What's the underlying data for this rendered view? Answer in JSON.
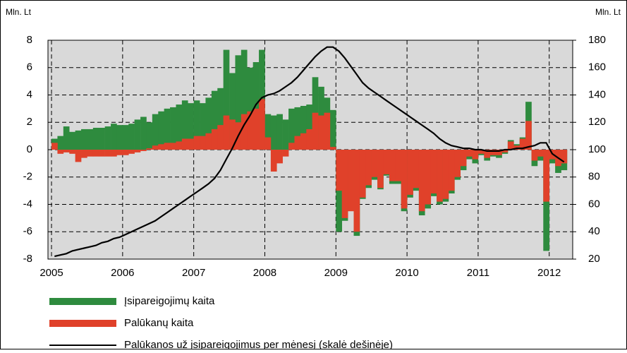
{
  "chart_data": {
    "type": "bar",
    "y_label": "Mln. Lt",
    "y2_label": "Mln. Lt",
    "x": [
      2005.042,
      2005.125,
      2005.208,
      2005.292,
      2005.375,
      2005.458,
      2005.542,
      2005.625,
      2005.708,
      2005.792,
      2005.875,
      2005.958,
      2006.042,
      2006.125,
      2006.208,
      2006.292,
      2006.375,
      2006.458,
      2006.542,
      2006.625,
      2006.708,
      2006.792,
      2006.875,
      2006.958,
      2007.042,
      2007.125,
      2007.208,
      2007.292,
      2007.375,
      2007.458,
      2007.542,
      2007.625,
      2007.708,
      2007.792,
      2007.875,
      2007.958,
      2008.042,
      2008.125,
      2008.208,
      2008.292,
      2008.375,
      2008.458,
      2008.542,
      2008.625,
      2008.708,
      2008.792,
      2008.875,
      2008.958,
      2009.042,
      2009.125,
      2009.208,
      2009.292,
      2009.375,
      2009.458,
      2009.542,
      2009.625,
      2009.708,
      2009.792,
      2009.875,
      2009.958,
      2010.042,
      2010.125,
      2010.208,
      2010.292,
      2010.375,
      2010.458,
      2010.542,
      2010.625,
      2010.708,
      2010.792,
      2010.875,
      2010.958,
      2011.042,
      2011.125,
      2011.208,
      2011.292,
      2011.375,
      2011.458,
      2011.542,
      2011.625,
      2011.708,
      2011.792,
      2011.875,
      2011.958,
      2012.042,
      2012.125,
      2012.208
    ],
    "series": [
      {
        "name": "Įsipareigojimų kaita",
        "color": "#2e8b3e",
        "type": "bar",
        "values": [
          0.8,
          1.0,
          1.7,
          1.3,
          1.4,
          1.5,
          1.5,
          1.6,
          1.6,
          1.7,
          1.9,
          1.8,
          1.8,
          1.9,
          2.2,
          2.4,
          2.0,
          2.6,
          2.8,
          3.0,
          3.1,
          3.3,
          3.6,
          3.4,
          3.6,
          3.4,
          3.8,
          4.3,
          4.5,
          7.3,
          5.6,
          6.9,
          7.3,
          6.0,
          6.4,
          7.3,
          2.6,
          2.5,
          2.6,
          2.2,
          3.0,
          3.1,
          3.2,
          3.3,
          5.3,
          4.6,
          3.8,
          2.9,
          -6.0,
          -5.2,
          -4.0,
          -6.3,
          -3.6,
          -2.8,
          -2.2,
          -2.9,
          -1.9,
          -2.5,
          -2.5,
          -4.5,
          -3.5,
          -3.0,
          -4.8,
          -4.3,
          -3.4,
          -4.0,
          -3.8,
          -3.2,
          -2.2,
          -1.5,
          -0.7,
          -1.0,
          -0.4,
          -0.8,
          -0.5,
          -0.6,
          -0.3,
          0.7,
          0.4,
          0.9,
          3.5,
          -1.2,
          -0.8,
          -7.4,
          -1.0,
          -1.7,
          -1.5
        ]
      },
      {
        "name": "Palūkanų kaita",
        "color": "#e0412a",
        "type": "bar",
        "values": [
          0.5,
          -0.3,
          -0.2,
          -0.3,
          -0.9,
          -0.6,
          -0.5,
          -0.5,
          -0.5,
          -0.5,
          -0.5,
          -0.4,
          -0.4,
          -0.3,
          -0.2,
          -0.1,
          0.1,
          0.3,
          0.4,
          0.5,
          0.5,
          0.6,
          0.8,
          0.8,
          1.0,
          1.0,
          1.2,
          1.5,
          1.8,
          2.5,
          2.2,
          2.0,
          2.6,
          2.8,
          3.0,
          3.7,
          0.9,
          -1.6,
          -1.0,
          -0.5,
          0.5,
          1.0,
          1.2,
          1.5,
          2.7,
          2.5,
          2.7,
          0.2,
          -3.0,
          -5.0,
          -4.5,
          -6.0,
          -3.5,
          -2.6,
          -2.0,
          -2.8,
          -1.8,
          -2.3,
          -2.3,
          -4.3,
          -3.3,
          -2.8,
          -4.5,
          -4.0,
          -3.2,
          -3.8,
          -3.6,
          -3.0,
          -2.0,
          -1.2,
          -0.5,
          -0.7,
          -0.3,
          -0.6,
          -0.4,
          -0.4,
          -0.2,
          0.6,
          0.3,
          0.8,
          2.1,
          -0.8,
          -0.5,
          -3.8,
          -0.7,
          -1.2,
          -1.0
        ]
      },
      {
        "name": "Palūkanos už įsipareigojimus per mėnesį (skalė dešinėje)",
        "color": "#000000",
        "type": "line",
        "axis": "y2",
        "values": [
          22,
          23,
          24,
          26,
          27,
          28,
          29,
          30,
          32,
          33,
          35,
          36,
          38,
          40,
          42,
          44,
          46,
          48,
          51,
          54,
          57,
          60,
          63,
          66,
          69,
          72,
          75,
          79,
          85,
          93,
          101,
          110,
          118,
          125,
          133,
          138,
          140,
          141,
          143,
          146,
          149,
          153,
          158,
          163,
          168,
          172,
          175,
          175,
          172,
          167,
          161,
          155,
          149,
          145,
          142,
          139,
          136,
          133,
          130,
          127,
          124,
          121,
          118,
          115,
          112,
          108,
          105,
          103,
          102,
          101,
          101,
          100,
          100,
          99,
          99,
          99,
          100,
          100,
          101,
          101,
          102,
          103,
          105,
          105,
          97,
          94,
          91
        ]
      }
    ],
    "xlim": [
      2004.95,
      2012.33
    ],
    "xticks": [
      2005,
      2006,
      2007,
      2008,
      2009,
      2010,
      2011,
      2012
    ],
    "ylim": [
      -8,
      8
    ],
    "yticks": [
      -8,
      -6,
      -4,
      -2,
      0,
      2,
      4,
      6,
      8
    ],
    "y2lim": [
      20,
      180
    ],
    "y2ticks": [
      20,
      40,
      60,
      80,
      100,
      120,
      140,
      160,
      180
    ],
    "grid": true
  }
}
